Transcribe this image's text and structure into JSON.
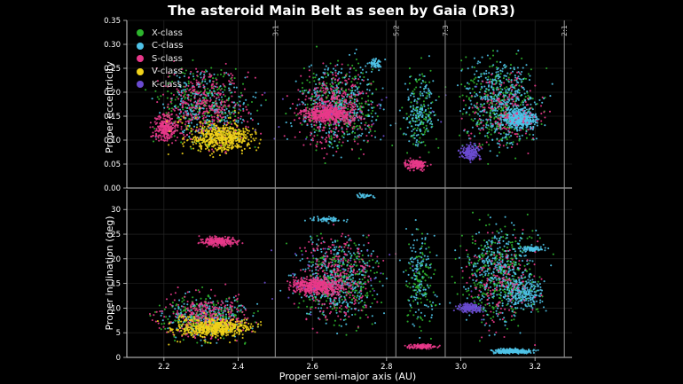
{
  "title": "The asteroid Main Belt as seen by Gaia (DR3)",
  "legend": [
    {
      "name": "X-class",
      "color": "#2db52d"
    },
    {
      "name": "C-class",
      "color": "#4fc3e8"
    },
    {
      "name": "S-class",
      "color": "#e8388a"
    },
    {
      "name": "V-class",
      "color": "#f0d21a"
    },
    {
      "name": "K-class",
      "color": "#6a4bd0"
    }
  ],
  "chart_data": [
    {
      "type": "scatter",
      "panel": "top",
      "title": "The asteroid Main Belt as seen by Gaia (DR3)",
      "xlabel": "Proper semi-major axis (AU)",
      "ylabel": "Proper eccentricity",
      "xlim": [
        2.1,
        3.3
      ],
      "ylim": [
        0.0,
        0.35
      ],
      "yticks": [
        "0.00",
        "0.05",
        "0.10",
        "0.15",
        "0.20",
        "0.25",
        "0.30",
        "0.35"
      ],
      "resonances": [
        {
          "label": "3:1",
          "a": 2.5
        },
        {
          "label": "5:2",
          "a": 2.825
        },
        {
          "label": "7:3",
          "a": 2.958
        },
        {
          "label": "2:1",
          "a": 3.279
        }
      ],
      "series": [
        {
          "name": "X-class",
          "color": "#2db52d",
          "clusters": [
            {
              "a": [
                2.15,
                2.48
              ],
              "y": [
                0.03,
                0.3
              ],
              "n": 260
            },
            {
              "a": [
                2.52,
                2.82
              ],
              "y": [
                0.02,
                0.32
              ],
              "n": 300
            },
            {
              "a": [
                2.83,
                2.95
              ],
              "y": [
                0.02,
                0.3
              ],
              "n": 110
            },
            {
              "a": [
                2.97,
                3.25
              ],
              "y": [
                0.02,
                0.32
              ],
              "n": 320
            }
          ]
        },
        {
          "name": "C-class",
          "color": "#4fc3e8",
          "clusters": [
            {
              "a": [
                2.15,
                2.48
              ],
              "y": [
                0.04,
                0.3
              ],
              "n": 260
            },
            {
              "a": [
                2.52,
                2.82
              ],
              "y": [
                0.03,
                0.32
              ],
              "n": 340
            },
            {
              "a": [
                2.74,
                2.8
              ],
              "y": [
                0.24,
                0.28
              ],
              "n": 60
            },
            {
              "a": [
                2.83,
                2.95
              ],
              "y": [
                0.03,
                0.3
              ],
              "n": 140
            },
            {
              "a": [
                2.97,
                3.25
              ],
              "y": [
                0.03,
                0.33
              ],
              "n": 420
            },
            {
              "a": [
                3.1,
                3.22
              ],
              "y": [
                0.11,
                0.18
              ],
              "n": 420
            }
          ]
        },
        {
          "name": "S-class",
          "color": "#e8388a",
          "clusters": [
            {
              "a": [
                2.15,
                2.48
              ],
              "y": [
                0.04,
                0.3
              ],
              "n": 380
            },
            {
              "a": [
                2.16,
                2.25
              ],
              "y": [
                0.08,
                0.17
              ],
              "n": 260
            },
            {
              "a": [
                2.52,
                2.8
              ],
              "y": [
                0.03,
                0.3
              ],
              "n": 380
            },
            {
              "a": [
                2.55,
                2.73
              ],
              "y": [
                0.13,
                0.18
              ],
              "n": 420
            },
            {
              "a": [
                2.84,
                2.92
              ],
              "y": [
                0.03,
                0.07
              ],
              "n": 160
            },
            {
              "a": [
                2.97,
                3.25
              ],
              "y": [
                0.03,
                0.3
              ],
              "n": 180
            }
          ]
        },
        {
          "name": "V-class",
          "color": "#f0d21a",
          "clusters": [
            {
              "a": [
                2.24,
                2.48
              ],
              "y": [
                0.06,
                0.15
              ],
              "n": 520
            },
            {
              "a": [
                2.15,
                2.48
              ],
              "y": [
                0.03,
                0.2
              ],
              "n": 70
            }
          ]
        },
        {
          "name": "K-class",
          "color": "#6a4bd0",
          "clusters": [
            {
              "a": [
                2.99,
                3.06
              ],
              "y": [
                0.05,
                0.1
              ],
              "n": 190
            },
            {
              "a": [
                2.15,
                3.25
              ],
              "y": [
                0.03,
                0.3
              ],
              "n": 30
            }
          ]
        }
      ]
    },
    {
      "type": "scatter",
      "panel": "bottom",
      "xlabel": "Proper semi-major axis (AU)",
      "ylabel": "Proper inclination (deg)",
      "xlim": [
        2.1,
        3.3
      ],
      "ylim": [
        0,
        34
      ],
      "xticks": [
        "2.2",
        "2.4",
        "2.6",
        "2.8",
        "3.0",
        "3.2"
      ],
      "yticks": [
        "0",
        "5",
        "10",
        "15",
        "20",
        "25",
        "30"
      ],
      "series": [
        {
          "name": "X-class",
          "color": "#2db52d",
          "clusters": [
            {
              "a": [
                2.15,
                2.48
              ],
              "y": [
                1,
                16
              ],
              "n": 240
            },
            {
              "a": [
                2.52,
                2.82
              ],
              "y": [
                1,
                30
              ],
              "n": 300
            },
            {
              "a": [
                2.83,
                2.95
              ],
              "y": [
                1,
                30
              ],
              "n": 110
            },
            {
              "a": [
                2.97,
                3.25
              ],
              "y": [
                1,
                32
              ],
              "n": 340
            }
          ]
        },
        {
          "name": "C-class",
          "color": "#4fc3e8",
          "clusters": [
            {
              "a": [
                2.15,
                2.48
              ],
              "y": [
                1,
                16
              ],
              "n": 220
            },
            {
              "a": [
                2.52,
                2.82
              ],
              "y": [
                2,
                30
              ],
              "n": 340
            },
            {
              "a": [
                2.58,
                2.7
              ],
              "y": [
                27,
                29
              ],
              "n": 60
            },
            {
              "a": [
                2.7,
                2.78
              ],
              "y": [
                32,
                33.5
              ],
              "n": 30
            },
            {
              "a": [
                2.83,
                2.95
              ],
              "y": [
                1,
                33
              ],
              "n": 120
            },
            {
              "a": [
                2.97,
                3.25
              ],
              "y": [
                1,
                33
              ],
              "n": 360
            },
            {
              "a": [
                3.06,
                3.22
              ],
              "y": [
                0.5,
                2
              ],
              "n": 260
            },
            {
              "a": [
                3.15,
                3.24
              ],
              "y": [
                21,
                23
              ],
              "n": 90
            },
            {
              "a": [
                3.1,
                3.24
              ],
              "y": [
                8,
                18
              ],
              "n": 220
            }
          ]
        },
        {
          "name": "S-class",
          "color": "#e8388a",
          "clusters": [
            {
              "a": [
                2.15,
                2.48
              ],
              "y": [
                1,
                16
              ],
              "n": 300
            },
            {
              "a": [
                2.28,
                2.42
              ],
              "y": [
                22,
                25
              ],
              "n": 220
            },
            {
              "a": [
                2.52,
                2.82
              ],
              "y": [
                2,
                30
              ],
              "n": 320
            },
            {
              "a": [
                2.52,
                2.7
              ],
              "y": [
                12,
                17
              ],
              "n": 460
            },
            {
              "a": [
                2.84,
                2.95
              ],
              "y": [
                1.5,
                3
              ],
              "n": 130
            },
            {
              "a": [
                2.97,
                3.25
              ],
              "y": [
                1,
                30
              ],
              "n": 160
            }
          ]
        },
        {
          "name": "V-class",
          "color": "#f0d21a",
          "clusters": [
            {
              "a": [
                2.2,
                2.48
              ],
              "y": [
                3,
                9
              ],
              "n": 520
            },
            {
              "a": [
                2.15,
                2.48
              ],
              "y": [
                1,
                12
              ],
              "n": 80
            }
          ]
        },
        {
          "name": "K-class",
          "color": "#6a4bd0",
          "clusters": [
            {
              "a": [
                2.98,
                3.07
              ],
              "y": [
                8.5,
                11.5
              ],
              "n": 180
            },
            {
              "a": [
                2.15,
                3.25
              ],
              "y": [
                1,
                30
              ],
              "n": 30
            }
          ]
        }
      ]
    }
  ]
}
